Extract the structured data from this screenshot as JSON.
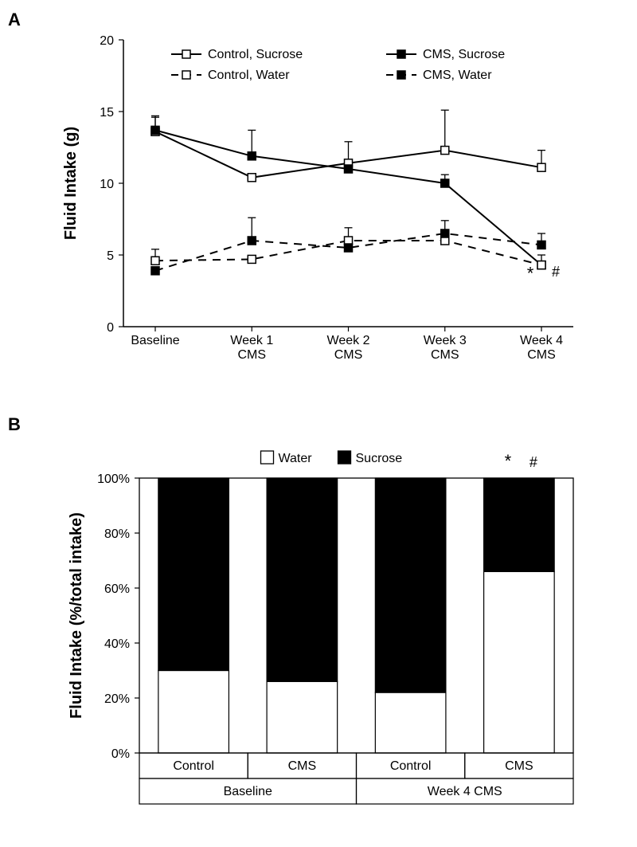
{
  "panelA": {
    "label": "A",
    "type": "line",
    "title": "",
    "ylabel": "Fluid Intake (g)",
    "label_fontsize": 20,
    "tick_fontsize": 16,
    "legend_fontsize": 16,
    "xlim": [
      0,
      4
    ],
    "ylim": [
      0,
      20
    ],
    "ytick_step": 5,
    "x_categories": [
      "Baseline",
      "Week 1\nCMS",
      "Week 2\nCMS",
      "Week 3\nCMS",
      "Week 4\nCMS"
    ],
    "series": [
      {
        "name": "Control, Sucrose",
        "marker": "square-open",
        "marker_size": 10,
        "line_dash": "solid",
        "line_width": 2,
        "color": "#000000",
        "fill": "#ffffff",
        "values": [
          13.6,
          10.4,
          11.4,
          12.3,
          11.1
        ],
        "errors": [
          1.1,
          0.0,
          1.5,
          2.8,
          1.2
        ]
      },
      {
        "name": "CMS, Sucrose",
        "marker": "square-solid",
        "marker_size": 10,
        "line_dash": "solid",
        "line_width": 2,
        "color": "#000000",
        "fill": "#000000",
        "values": [
          13.7,
          11.9,
          11.0,
          10.0,
          4.3
        ],
        "errors": [
          0.9,
          1.8,
          0.0,
          0.6,
          0.7
        ]
      },
      {
        "name": "Control, Water",
        "marker": "square-open",
        "marker_size": 10,
        "line_dash": "dashed",
        "line_width": 2,
        "color": "#000000",
        "fill": "#ffffff",
        "values": [
          4.6,
          4.7,
          6.0,
          6.0,
          4.3
        ],
        "errors": [
          0.8,
          0.0,
          0.9,
          0.0,
          0.0
        ]
      },
      {
        "name": "CMS, Water",
        "marker": "square-solid",
        "marker_size": 10,
        "line_dash": "dashed",
        "line_width": 2,
        "color": "#000000",
        "fill": "#000000",
        "values": [
          3.9,
          6.0,
          5.5,
          6.5,
          5.7
        ],
        "errors": [
          0.0,
          1.6,
          0.0,
          0.9,
          0.8
        ]
      }
    ],
    "annotations": [
      {
        "text": "*",
        "cat_index": 4,
        "y": 3.3,
        "dx": -14,
        "fontsize": 22
      },
      {
        "text": "#",
        "cat_index": 4,
        "y": 3.5,
        "dx": 18,
        "fontsize": 18
      }
    ],
    "background_color": "#ffffff",
    "axis_color": "#000000"
  },
  "panelB": {
    "label": "B",
    "type": "stacked-bar",
    "ylabel": "Fluid Intake (%/total intake)",
    "label_fontsize": 20,
    "tick_fontsize": 16,
    "legend_fontsize": 16,
    "ylim": [
      0,
      100
    ],
    "ytick_step": 20,
    "ytick_suffix": "%",
    "legend": [
      {
        "name": "Water",
        "fill": "#ffffff",
        "stroke": "#000000"
      },
      {
        "name": "Sucrose",
        "fill": "#000000",
        "stroke": "#000000"
      }
    ],
    "groups": [
      {
        "name": "Baseline",
        "bars": [
          {
            "name": "Control",
            "water": 30,
            "sucrose": 70
          },
          {
            "name": "CMS",
            "water": 26,
            "sucrose": 74
          }
        ]
      },
      {
        "name": "Week 4 CMS",
        "bars": [
          {
            "name": "Control",
            "water": 22,
            "sucrose": 78
          },
          {
            "name": "CMS",
            "water": 66,
            "sucrose": 34
          }
        ]
      }
    ],
    "bar_width": 0.65,
    "bar_stroke": "#000000",
    "bar_stroke_width": 1.2,
    "annotations": [
      {
        "text": "*",
        "group": 1,
        "bar": 1,
        "y": 104,
        "dx": -14,
        "fontsize": 22
      },
      {
        "text": "#",
        "group": 1,
        "bar": 1,
        "y": 104,
        "dx": 18,
        "fontsize": 18
      }
    ],
    "background_color": "#ffffff",
    "axis_color": "#000000"
  }
}
